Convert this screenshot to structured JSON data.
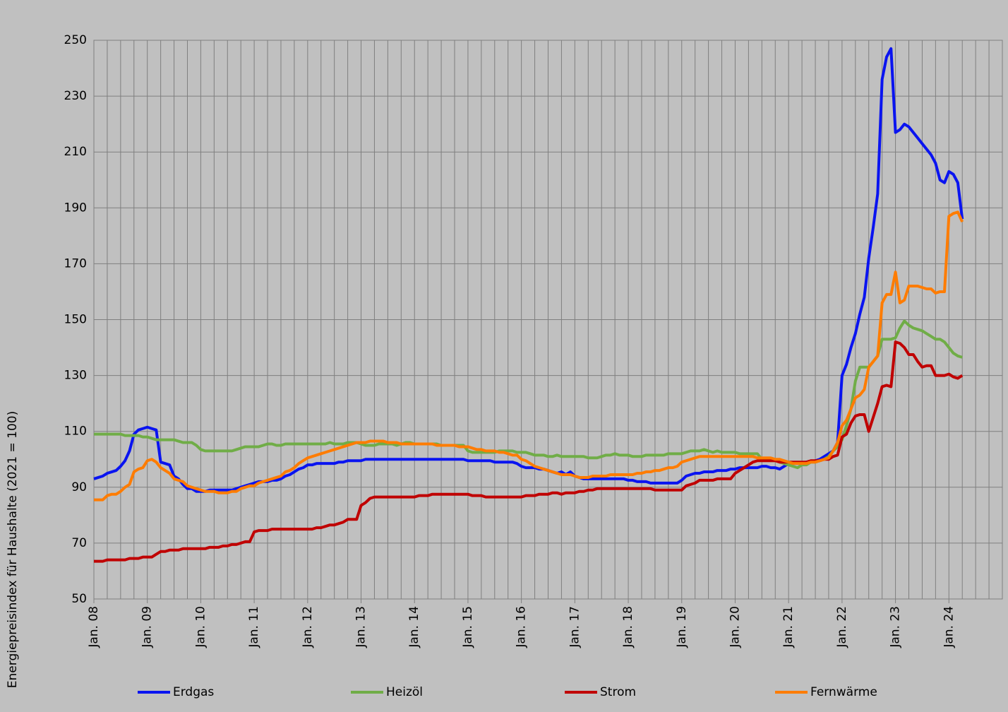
{
  "chart_data": {
    "type": "line",
    "ylabel": "Energiepreisindex für Haushalte (2021 = 100)",
    "ylim": [
      50,
      250
    ],
    "yticks": [
      50,
      70,
      90,
      110,
      130,
      150,
      170,
      190,
      210,
      230,
      250
    ],
    "grid": true,
    "legend": "bottom",
    "categories": [
      "Jan. 08",
      null,
      null,
      null,
      null,
      null,
      null,
      null,
      null,
      null,
      null,
      null,
      "Jan. 09",
      null,
      null,
      null,
      null,
      null,
      null,
      null,
      null,
      null,
      null,
      null,
      "Jan. 10",
      null,
      null,
      null,
      null,
      null,
      null,
      null,
      null,
      null,
      null,
      null,
      "Jan. 11",
      null,
      null,
      null,
      null,
      null,
      null,
      null,
      null,
      null,
      null,
      null,
      "Jan. 12",
      null,
      null,
      null,
      null,
      null,
      null,
      null,
      null,
      null,
      null,
      null,
      "Jan. 13",
      null,
      null,
      null,
      null,
      null,
      null,
      null,
      null,
      null,
      null,
      null,
      "Jan. 14",
      null,
      null,
      null,
      null,
      null,
      null,
      null,
      null,
      null,
      null,
      null,
      "Jan. 15",
      null,
      null,
      null,
      null,
      null,
      null,
      null,
      null,
      null,
      null,
      null,
      "Jan. 16",
      null,
      null,
      null,
      null,
      null,
      null,
      null,
      null,
      null,
      null,
      null,
      "Jan. 17",
      null,
      null,
      null,
      null,
      null,
      null,
      null,
      null,
      null,
      null,
      null,
      "Jan. 18",
      null,
      null,
      null,
      null,
      null,
      null,
      null,
      null,
      null,
      null,
      null,
      "Jan. 19",
      null,
      null,
      null,
      null,
      null,
      null,
      null,
      null,
      null,
      null,
      null,
      "Jan. 20",
      null,
      null,
      null,
      null,
      null,
      null,
      null,
      null,
      null,
      null,
      null,
      "Jan. 21",
      null,
      null,
      null,
      null,
      null,
      null,
      null,
      null,
      null,
      null,
      null,
      "Jan. 22",
      null,
      null,
      null,
      null,
      null,
      null,
      null,
      null,
      null,
      null,
      null,
      "Jan. 23",
      null,
      null,
      null,
      null,
      null,
      null,
      null,
      null,
      null,
      null,
      null,
      "Jan. 24",
      null,
      null,
      null,
      null,
      null,
      null,
      null,
      null,
      null,
      null,
      null
    ],
    "series": [
      {
        "name": "Erdgas",
        "color": "#0a14f0",
        "values": [
          93,
          93.5,
          94,
          95,
          95.5,
          96,
          97.5,
          99.5,
          103,
          109,
          110.5,
          111,
          111.5,
          111,
          110.5,
          99,
          98.5,
          98,
          94,
          93,
          91,
          89.5,
          89.5,
          88.5,
          88.5,
          88.5,
          89,
          89,
          89,
          89,
          89,
          89,
          89.5,
          90,
          90.5,
          91,
          91.5,
          92,
          92,
          92,
          92.5,
          92.5,
          93,
          94,
          94.5,
          95.5,
          96.5,
          97,
          98,
          98,
          98.5,
          98.5,
          98.5,
          98.5,
          98.5,
          99,
          99,
          99.5,
          99.5,
          99.5,
          99.5,
          100,
          100,
          100,
          100,
          100,
          100,
          100,
          100,
          100,
          100,
          100,
          100,
          100,
          100,
          100,
          100,
          100,
          100,
          100,
          100,
          100,
          100,
          100,
          99.5,
          99.5,
          99.5,
          99.5,
          99.5,
          99.5,
          99,
          99,
          99,
          99,
          99,
          98.5,
          97.5,
          97,
          97,
          97,
          96.5,
          96.5,
          96,
          95.5,
          95,
          95.5,
          94.5,
          95.5,
          94,
          93.5,
          93,
          93,
          93,
          93,
          93,
          93,
          93,
          93,
          93,
          93,
          92.5,
          92.5,
          92,
          92,
          92,
          91.5,
          91.5,
          91.5,
          91.5,
          91.5,
          91.5,
          91.5,
          92.5,
          94,
          94.5,
          95,
          95,
          95.5,
          95.5,
          95.5,
          96,
          96,
          96,
          96.5,
          96.5,
          97,
          97,
          97,
          97,
          97,
          97.5,
          97.5,
          97,
          97,
          96.5,
          97.5,
          98.5,
          98.5,
          98.5,
          98.5,
          99,
          99,
          99.5,
          100,
          101,
          102,
          103,
          106,
          130,
          134,
          140,
          145,
          152,
          158,
          172,
          183,
          195,
          236,
          244,
          247,
          217,
          218,
          220,
          219,
          217,
          215,
          213,
          211,
          209,
          206,
          200,
          199,
          203,
          202,
          199,
          186,
          null,
          null,
          null,
          null,
          null,
          null,
          null,
          null
        ]
      },
      {
        "name": "Heizöl",
        "color": "#70ad47",
        "values": [
          109,
          109,
          109,
          109,
          109,
          109,
          109,
          108.5,
          108.5,
          108.5,
          108.5,
          108,
          108,
          107.5,
          107,
          107,
          107,
          107,
          107,
          106.5,
          106,
          106,
          106,
          105,
          103.5,
          103,
          103,
          103,
          103,
          103,
          103,
          103,
          103.5,
          104,
          104.5,
          104.5,
          104.5,
          104.5,
          105,
          105.5,
          105.5,
          105,
          105,
          105.5,
          105.5,
          105.5,
          105.5,
          105.5,
          105.5,
          105.5,
          105.5,
          105.5,
          105.5,
          106,
          105.5,
          105.5,
          105.5,
          106,
          106,
          106,
          105.5,
          105,
          105,
          105,
          105.5,
          105.5,
          105.5,
          105.5,
          105,
          105.5,
          106,
          106,
          105.5,
          105.5,
          105.5,
          105.5,
          105.5,
          105.5,
          105,
          105,
          105,
          105,
          105,
          105,
          103,
          102.5,
          102.5,
          102.5,
          102.5,
          102.5,
          102.5,
          103,
          103,
          103,
          103,
          102.5,
          102.5,
          102.5,
          102,
          101.5,
          101.5,
          101.5,
          101,
          101,
          101.5,
          101,
          101,
          101,
          101,
          101,
          101,
          100.5,
          100.5,
          100.5,
          101,
          101.5,
          101.5,
          102,
          101.5,
          101.5,
          101.5,
          101,
          101,
          101,
          101.5,
          101.5,
          101.5,
          101.5,
          101.5,
          102,
          102,
          102,
          102,
          102.5,
          103,
          103,
          103,
          103.5,
          103,
          102.5,
          103,
          102.5,
          102.5,
          102.5,
          102.5,
          102,
          102,
          102,
          102,
          102,
          100,
          100,
          99.5,
          99.5,
          99,
          98.5,
          98,
          97.5,
          97,
          98,
          98,
          99,
          99,
          99.5,
          100,
          101,
          103,
          104.5,
          107,
          112,
          118,
          128,
          133,
          133,
          133,
          135,
          137,
          143,
          143,
          143,
          143.5,
          147,
          149.5,
          148,
          147,
          146.5,
          146,
          145,
          144,
          143,
          143,
          142,
          140,
          138,
          137,
          136.5,
          null,
          null,
          null,
          null,
          null,
          null,
          null,
          null
        ]
      },
      {
        "name": "Strom",
        "color": "#c00000",
        "values": [
          63.5,
          63.5,
          63.5,
          64,
          64,
          64,
          64,
          64,
          64.5,
          64.5,
          64.5,
          65,
          65,
          65,
          66,
          67,
          67,
          67.5,
          67.5,
          67.5,
          68,
          68,
          68,
          68,
          68,
          68,
          68.5,
          68.5,
          68.5,
          69,
          69,
          69.5,
          69.5,
          70,
          70.5,
          70.5,
          74,
          74.5,
          74.5,
          74.5,
          75,
          75,
          75,
          75,
          75,
          75,
          75,
          75,
          75,
          75,
          75.5,
          75.5,
          76,
          76.5,
          76.5,
          77,
          77.5,
          78.5,
          78.5,
          78.5,
          83.5,
          84.5,
          86,
          86.5,
          86.5,
          86.5,
          86.5,
          86.5,
          86.5,
          86.5,
          86.5,
          86.5,
          86.5,
          87,
          87,
          87,
          87.5,
          87.5,
          87.5,
          87.5,
          87.5,
          87.5,
          87.5,
          87.5,
          87.5,
          87,
          87,
          87,
          86.5,
          86.5,
          86.5,
          86.5,
          86.5,
          86.5,
          86.5,
          86.5,
          86.5,
          87,
          87,
          87,
          87.5,
          87.5,
          87.5,
          88,
          88,
          87.5,
          88,
          88,
          88,
          88.5,
          88.5,
          89,
          89,
          89.5,
          89.5,
          89.5,
          89.5,
          89.5,
          89.5,
          89.5,
          89.5,
          89.5,
          89.5,
          89.5,
          89.5,
          89.5,
          89,
          89,
          89,
          89,
          89,
          89,
          89,
          90.5,
          91,
          91.5,
          92.5,
          92.5,
          92.5,
          92.5,
          93,
          93,
          93,
          93,
          95,
          96,
          97,
          98,
          99,
          99.5,
          99.5,
          99.5,
          99.5,
          99.5,
          99,
          99,
          99,
          99,
          99,
          99,
          99,
          99.5,
          99.5,
          99.5,
          100,
          100,
          101,
          101.5,
          108,
          109,
          113,
          115.5,
          116,
          116,
          110,
          115,
          120,
          126,
          126.5,
          126,
          142,
          141.5,
          140,
          137.5,
          137.5,
          135,
          133,
          133.5,
          133.5,
          130,
          130,
          130,
          130.5,
          129.5,
          129,
          130,
          null,
          null,
          null,
          null,
          null,
          null,
          null,
          null
        ]
      },
      {
        "name": "Fernwärme",
        "color": "#ff7c00",
        "values": [
          85.5,
          85.5,
          85.5,
          87,
          87.5,
          87.5,
          88.5,
          90,
          91,
          95.5,
          96.5,
          97,
          99.5,
          100,
          99,
          97,
          96,
          95,
          93,
          92.5,
          92,
          90.5,
          90,
          89.5,
          89,
          88.5,
          88.5,
          88.5,
          88,
          88,
          88,
          88.5,
          88.5,
          89.5,
          90,
          90.5,
          90.5,
          91.5,
          92,
          92.5,
          93,
          93.5,
          94,
          95.5,
          96,
          97,
          98.5,
          99.5,
          100.5,
          101,
          101.5,
          102,
          102.5,
          103,
          103.5,
          104,
          104.5,
          105,
          105.5,
          106,
          106,
          106,
          106.5,
          106.5,
          106.5,
          106.5,
          106,
          106,
          106,
          105.5,
          105.5,
          105.5,
          105.5,
          105.5,
          105.5,
          105.5,
          105.5,
          105,
          105,
          105,
          105,
          105,
          104.5,
          104.5,
          104.5,
          104,
          103.5,
          103.5,
          103,
          103,
          103,
          102.5,
          102.5,
          102,
          101.5,
          101.5,
          100,
          99.5,
          98.5,
          97.5,
          97,
          96.5,
          96,
          95.5,
          95,
          94.5,
          94.5,
          94.5,
          94,
          93.5,
          93.5,
          93.5,
          94,
          94,
          94,
          94,
          94.5,
          94.5,
          94.5,
          94.5,
          94.5,
          94.5,
          95,
          95,
          95.5,
          95.5,
          96,
          96,
          96.5,
          97,
          97,
          97.5,
          99,
          99.5,
          100,
          100.5,
          101,
          101,
          101,
          101,
          101,
          101,
          101,
          101,
          101,
          101,
          101,
          101,
          101,
          100.5,
          100.5,
          100.5,
          100.5,
          100,
          100,
          99.5,
          99,
          98.5,
          98.5,
          98.5,
          98.5,
          99,
          99,
          99.5,
          100,
          100.5,
          103,
          106,
          112,
          114,
          118,
          122,
          123,
          125,
          133,
          135,
          137,
          156,
          159,
          159,
          167,
          156,
          157,
          162,
          162,
          162,
          161.5,
          161,
          161,
          159.5,
          160,
          160,
          187,
          188,
          188.5,
          185,
          null,
          null,
          null,
          null,
          null,
          null,
          null,
          null
        ]
      }
    ]
  }
}
